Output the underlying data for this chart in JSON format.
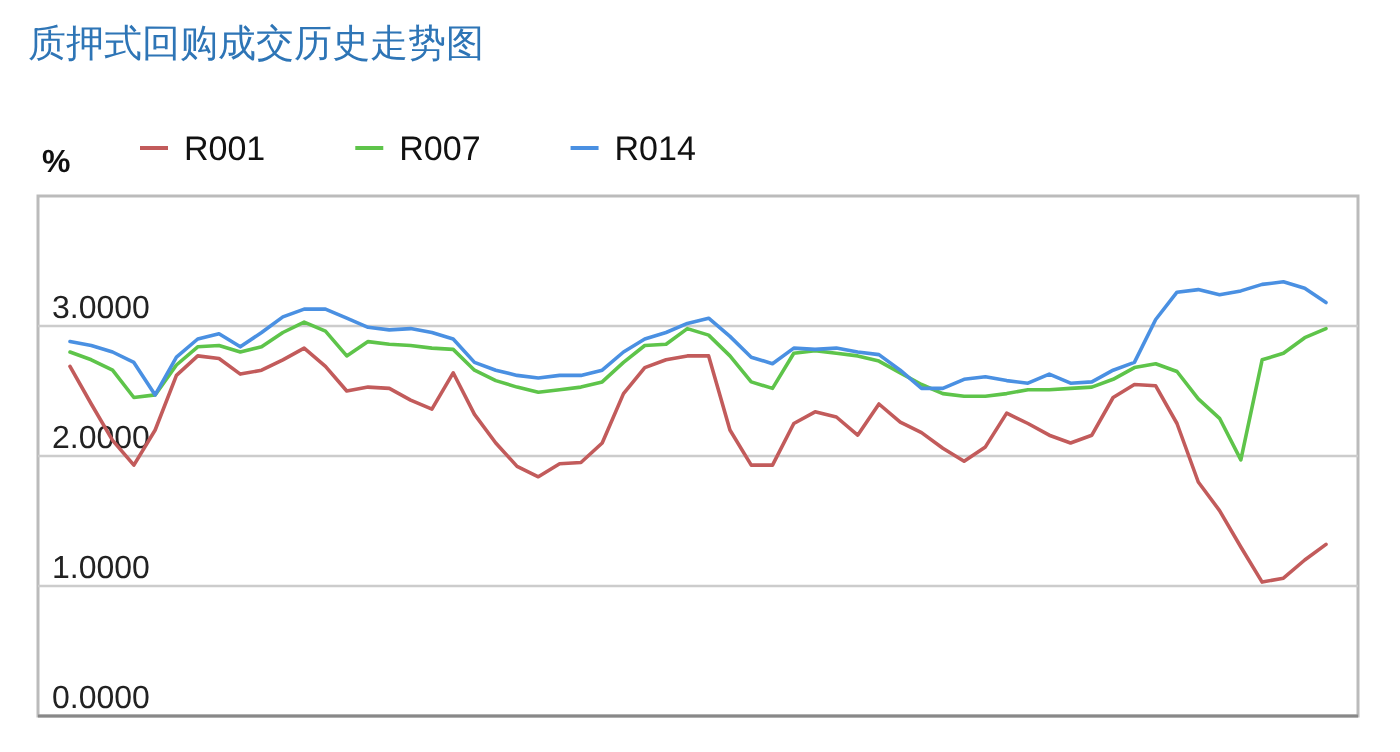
{
  "chart_data": {
    "type": "line",
    "title": "质押式回购成交历史走势图",
    "ylabel": "%",
    "categories": [
      null,
      null,
      null,
      null,
      null,
      null,
      null,
      null,
      null,
      null,
      null,
      null,
      null,
      null,
      null,
      null,
      null,
      null,
      null,
      null,
      null,
      null,
      null,
      null,
      null,
      null,
      null,
      null,
      null,
      null,
      null,
      null,
      null,
      null,
      null,
      null,
      null,
      null,
      null,
      null,
      null,
      null,
      null,
      null,
      null,
      null,
      null,
      null,
      null,
      null,
      null,
      null,
      null,
      null,
      null,
      null,
      null,
      null,
      null,
      null
    ],
    "ylim": [
      0,
      4
    ],
    "yticks": [
      {
        "value": 0,
        "label": "0.0000"
      },
      {
        "value": 1,
        "label": "1.0000"
      },
      {
        "value": 2,
        "label": "2.0000"
      },
      {
        "value": 3,
        "label": "3.0000"
      }
    ],
    "grid": "y",
    "legend": "top left",
    "marker": "none",
    "line_style": "solid",
    "series": [
      {
        "name": "R001",
        "color": "#c25b5b",
        "values": [
          2.69,
          2.4,
          2.12,
          1.93,
          2.2,
          2.62,
          2.77,
          2.75,
          2.63,
          2.66,
          2.74,
          2.83,
          2.69,
          2.5,
          2.53,
          2.52,
          2.43,
          2.36,
          2.64,
          2.32,
          2.1,
          1.92,
          1.84,
          1.94,
          1.95,
          2.1,
          2.48,
          2.68,
          2.74,
          2.77,
          2.77,
          2.2,
          1.93,
          1.93,
          2.25,
          2.34,
          2.3,
          2.16,
          2.4,
          2.26,
          2.18,
          2.06,
          1.96,
          2.07,
          2.33,
          2.25,
          2.16,
          2.1,
          2.16,
          2.45,
          2.55,
          2.54,
          2.25,
          1.8,
          1.58,
          1.3,
          1.03,
          1.06,
          1.2,
          1.32
        ]
      },
      {
        "name": "R007",
        "color": "#5ec44a",
        "values": [
          2.8,
          2.74,
          2.66,
          2.45,
          2.47,
          2.7,
          2.84,
          2.85,
          2.8,
          2.84,
          2.95,
          3.03,
          2.96,
          2.77,
          2.88,
          2.86,
          2.85,
          2.83,
          2.82,
          2.66,
          2.58,
          2.53,
          2.49,
          2.51,
          2.53,
          2.57,
          2.72,
          2.85,
          2.86,
          2.98,
          2.93,
          2.77,
          2.57,
          2.52,
          2.79,
          2.81,
          2.79,
          2.77,
          2.73,
          2.64,
          2.55,
          2.48,
          2.46,
          2.46,
          2.48,
          2.51,
          2.51,
          2.52,
          2.53,
          2.59,
          2.68,
          2.71,
          2.65,
          2.44,
          2.29,
          1.97,
          2.74,
          2.79,
          2.91,
          2.98
        ]
      },
      {
        "name": "R014",
        "color": "#4a90e2",
        "values": [
          2.88,
          2.85,
          2.8,
          2.72,
          2.47,
          2.76,
          2.9,
          2.94,
          2.84,
          2.95,
          3.07,
          3.13,
          3.13,
          3.06,
          2.99,
          2.97,
          2.98,
          2.95,
          2.9,
          2.72,
          2.66,
          2.62,
          2.6,
          2.62,
          2.62,
          2.66,
          2.8,
          2.9,
          2.95,
          3.02,
          3.06,
          2.92,
          2.76,
          2.71,
          2.83,
          2.82,
          2.83,
          2.8,
          2.78,
          2.66,
          2.52,
          2.52,
          2.59,
          2.61,
          2.58,
          2.56,
          2.63,
          2.56,
          2.57,
          2.66,
          2.72,
          3.05,
          3.26,
          3.28,
          3.24,
          3.27,
          3.32,
          3.34,
          3.29,
          3.18
        ]
      }
    ]
  }
}
